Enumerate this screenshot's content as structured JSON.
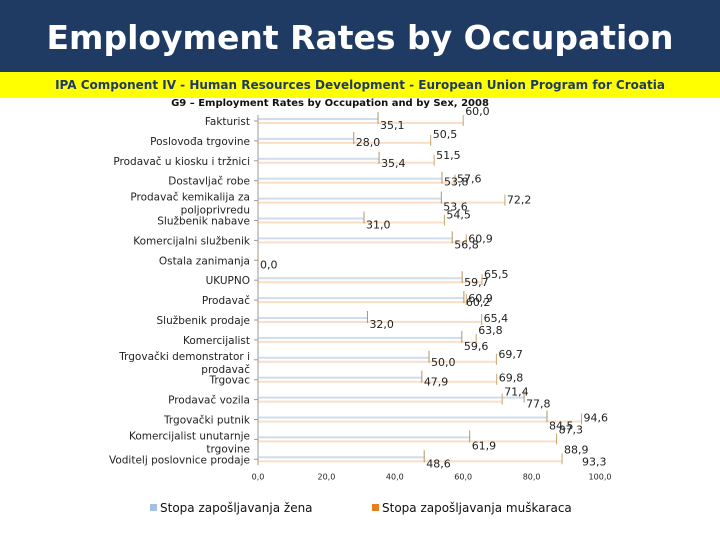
{
  "slide": {
    "title": "Employment Rates by Occupation",
    "subtitle": "IPA Component IV - Human Resources Development - European Union Program for Croatia",
    "title_bg": "#1f3b63",
    "subtitle_bg": "#ffff00"
  },
  "chart_data": {
    "type": "bar",
    "orientation": "horizontal",
    "title": "G9 – Employment Rates by Occupation and by Sex, 2008",
    "categories": [
      "Fakturist",
      "Poslovođa trgovine",
      "Prodavač u kiosku i tržnici",
      "Dostavljač robe",
      "Prodavač kemikalija za poljoprivredu",
      "Službenik nabave",
      "Komercijalni službenik",
      "Ostala zanimanja",
      "UKUPNO",
      "Prodavač",
      "Službenik prodaje",
      "Komercijalist",
      "Trgovački demonstrator i prodavač",
      "Trgovac",
      "Prodavač vozila",
      "Trgovački putnik",
      "Komercijalist unutarnje trgovine",
      "Voditelj poslovnice prodaje"
    ],
    "series": [
      {
        "name": "Stopa zapošljavanja žena",
        "color": "#a6c1e0",
        "values": [
          35.1,
          28.0,
          35.4,
          53.8,
          53.6,
          31.0,
          56.8,
          0.0,
          59.7,
          60.2,
          32.0,
          59.6,
          50.0,
          47.9,
          77.8,
          84.5,
          61.9,
          48.6
        ]
      },
      {
        "name": "Stopa zapošljavanja muškaraca",
        "color": "#e67e22",
        "values": [
          60.0,
          50.5,
          51.5,
          57.6,
          72.2,
          54.5,
          60.9,
          null,
          65.5,
          60.9,
          65.4,
          63.8,
          69.7,
          69.8,
          71.4,
          94.6,
          87.3,
          88.9
        ]
      }
    ],
    "extra_labels": [
      {
        "category": "Voditelj poslovnice prodaje",
        "value_label": "93,3"
      }
    ],
    "value_labels": {
      "women": [
        "35,1",
        "28,0",
        "35,4",
        "53,8",
        "53,6",
        "31,0",
        "56,8",
        "0,0",
        "59,7",
        "60,2",
        "32,0",
        "59,6",
        "50,0",
        "47,9",
        "77,8",
        "84,5",
        "61,9",
        "48,6"
      ],
      "men": [
        "60,0",
        "50,5",
        "51,5",
        "57,6",
        "72,2",
        "54,5",
        "60,9",
        "",
        "65,5",
        "60,9",
        "65,4",
        "63,8",
        "69,7",
        "69,8",
        "71,4",
        "94,6",
        "87,3",
        "88,9"
      ]
    },
    "x_ticks": [
      "0,0",
      "20,0",
      "40,0",
      "60,0",
      "80,0",
      "100,0"
    ],
    "xlim": [
      0,
      100
    ],
    "legend": {
      "position": "bottom",
      "items": [
        "Stopa zapošljavanja žena",
        "Stopa zapošljavanja muškaraca"
      ]
    }
  }
}
